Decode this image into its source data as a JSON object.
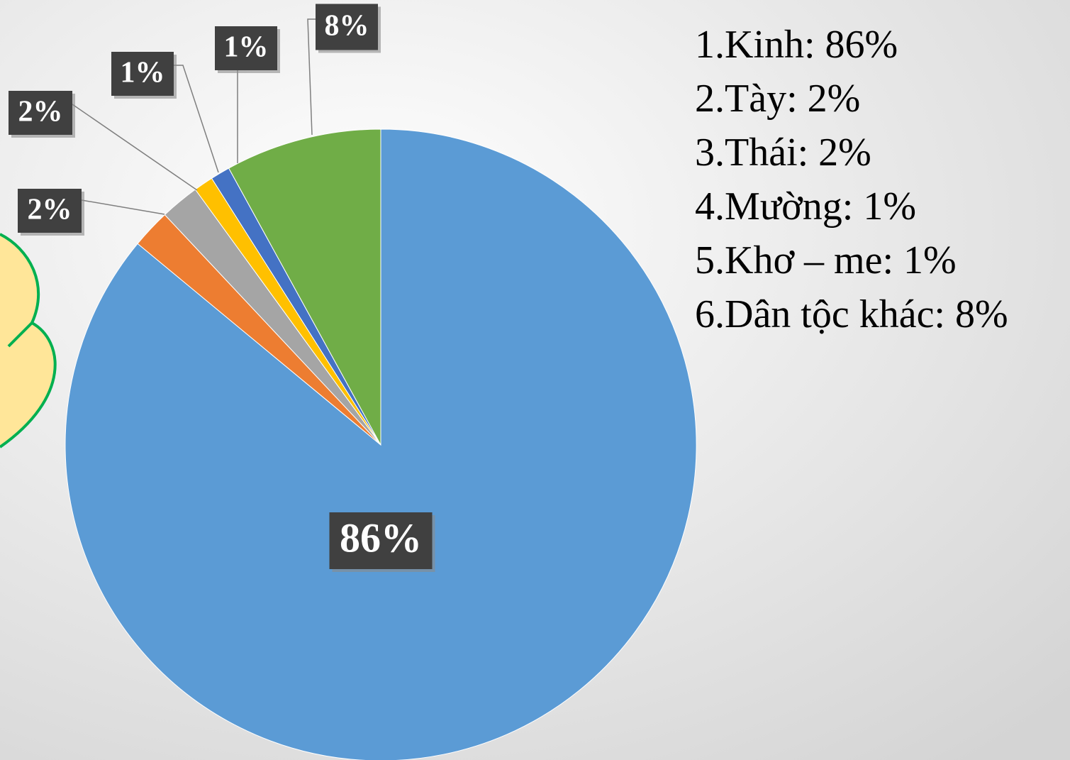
{
  "chart_data": {
    "type": "pie",
    "categories": [
      "1.Kinh: 86%",
      "2.Tày: 2%",
      "3.Thái: 2%",
      "4.Mường: 1%",
      "5.Khơ – me: 1%",
      "6.Dân tộc khác: 8%"
    ],
    "values": [
      86,
      2,
      2,
      1,
      1,
      8
    ],
    "value_labels": [
      "86%",
      "2%",
      "2%",
      "1%",
      "1%",
      "8%"
    ],
    "colors": [
      "#5b9bd5",
      "#ed7d31",
      "#a5a5a5",
      "#ffc000",
      "#4472c4",
      "#70ad47"
    ]
  }
}
